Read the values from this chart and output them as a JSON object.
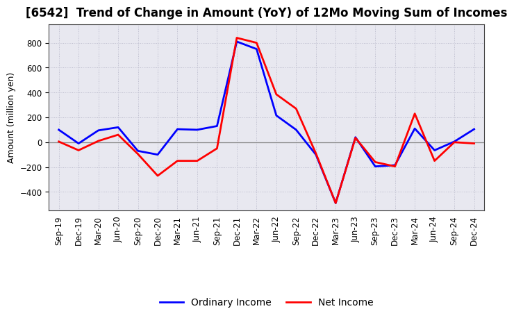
{
  "title": "[6542]  Trend of Change in Amount (YoY) of 12Mo Moving Sum of Incomes",
  "ylabel": "Amount (million yen)",
  "x_labels": [
    "Sep-19",
    "Dec-19",
    "Mar-20",
    "Jun-20",
    "Sep-20",
    "Dec-20",
    "Mar-21",
    "Jun-21",
    "Sep-21",
    "Dec-21",
    "Mar-22",
    "Jun-22",
    "Sep-22",
    "Dec-22",
    "Mar-23",
    "Jun-23",
    "Sep-23",
    "Dec-23",
    "Mar-24",
    "Jun-24",
    "Sep-24",
    "Dec-24"
  ],
  "ordinary_income": [
    100,
    -10,
    95,
    120,
    -70,
    -100,
    105,
    100,
    130,
    810,
    750,
    215,
    100,
    -100,
    -490,
    40,
    -195,
    -185,
    110,
    -65,
    5,
    105
  ],
  "net_income": [
    5,
    -65,
    10,
    60,
    -95,
    -270,
    -150,
    -150,
    -50,
    840,
    800,
    385,
    270,
    -90,
    -490,
    35,
    -160,
    -195,
    230,
    -150,
    0,
    -10
  ],
  "ordinary_color": "#0000ff",
  "net_color": "#ff0000",
  "ylim": [
    -550,
    950
  ],
  "yticks": [
    -400,
    -200,
    0,
    200,
    400,
    600,
    800
  ],
  "plot_bg_color": "#e8e8f0",
  "fig_bg_color": "#ffffff",
  "grid_color": "#bbbbcc",
  "zero_line_color": "#888888",
  "legend_labels": [
    "Ordinary Income",
    "Net Income"
  ],
  "line_width": 2.0,
  "title_fontsize": 12,
  "label_fontsize": 9,
  "tick_fontsize": 8.5
}
